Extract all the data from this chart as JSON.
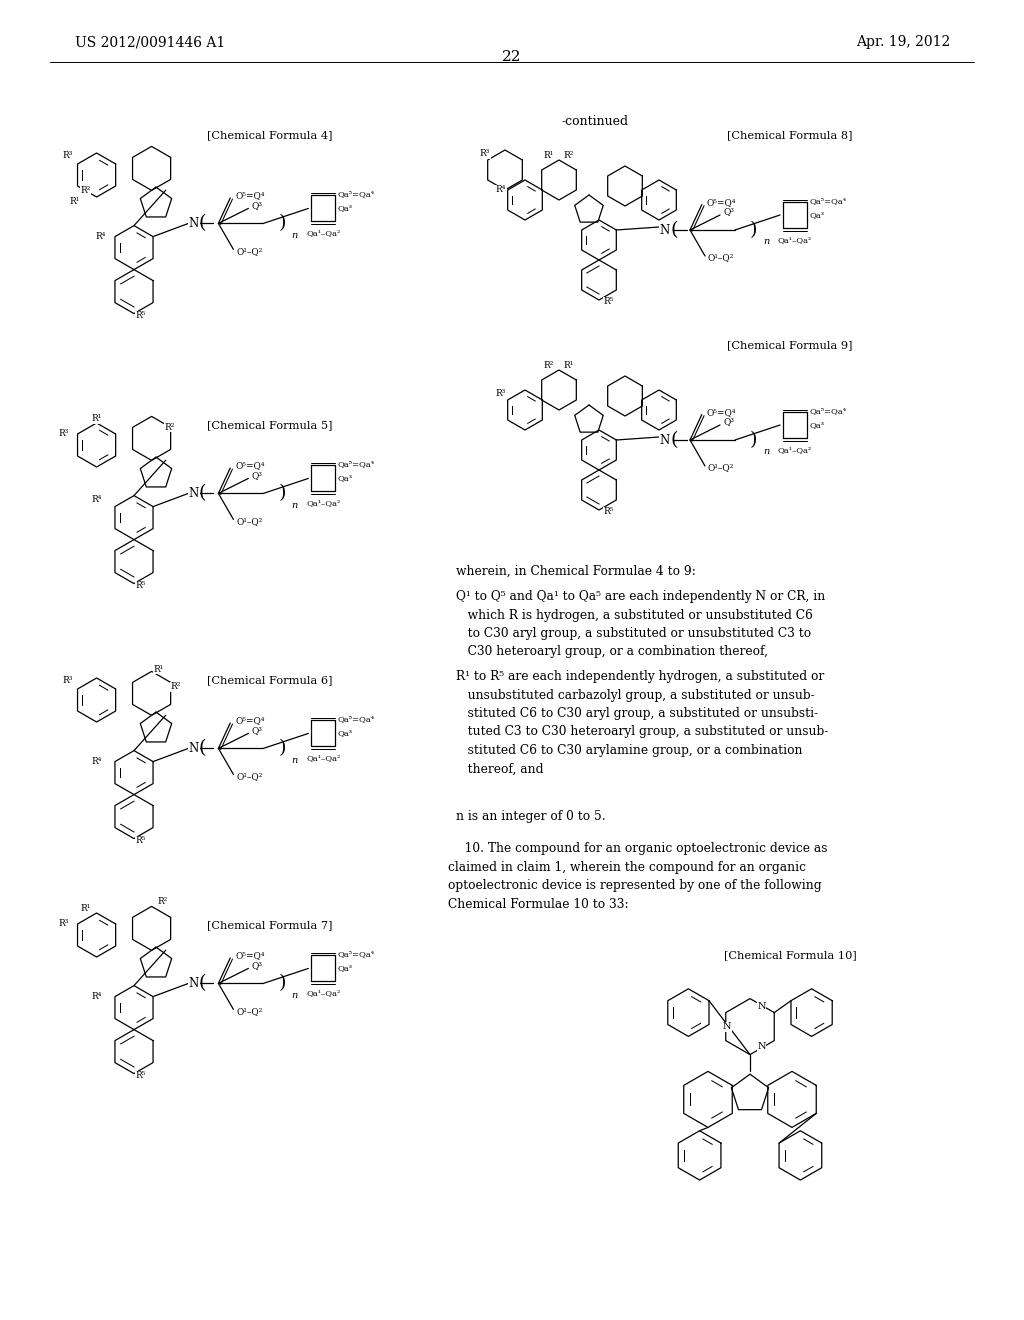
{
  "background_color": "#ffffff",
  "header_left": "US 2012/0091446 A1",
  "header_right": "Apr. 19, 2012",
  "page_number": "22",
  "continued_label": "-continued",
  "lw": 0.9,
  "fs_label": 8.0,
  "fs_body": 8.8,
  "fs_header": 9.5
}
